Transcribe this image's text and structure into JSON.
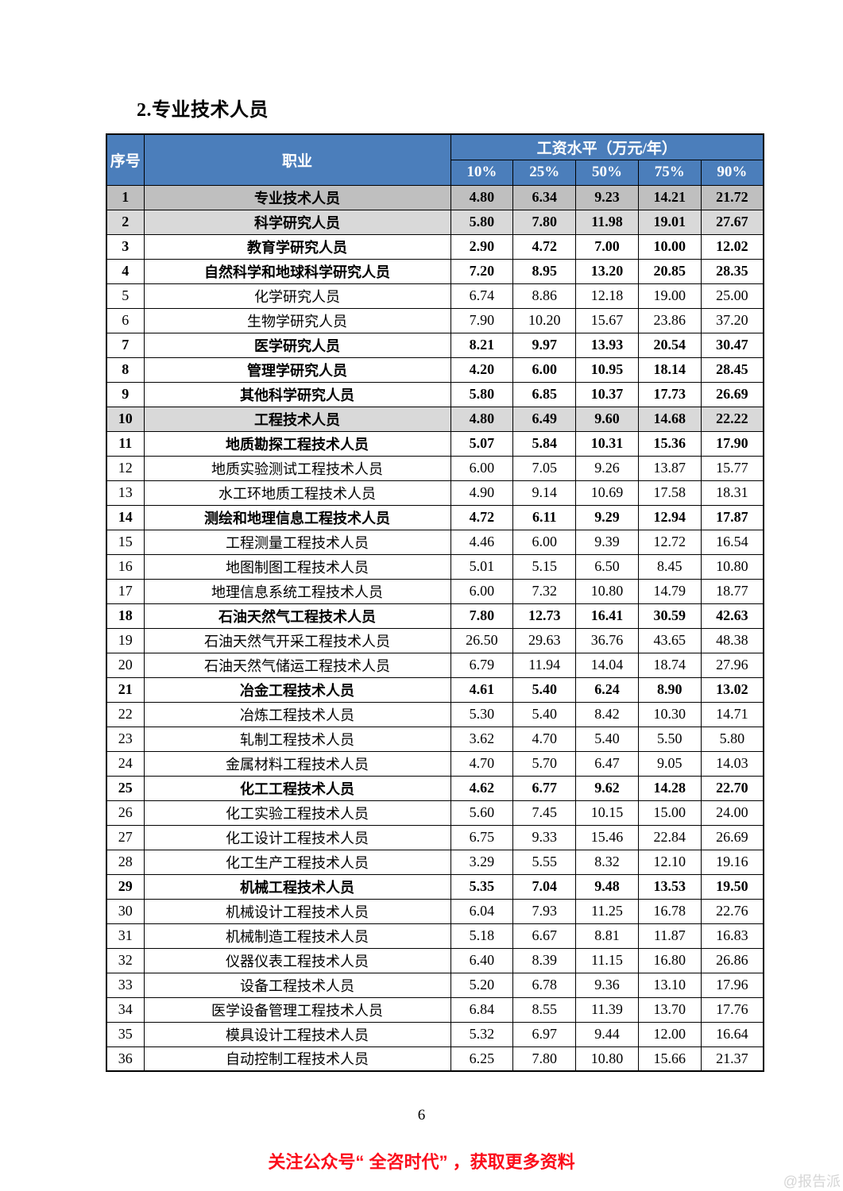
{
  "page": {
    "title": "2.专业技术人员",
    "page_number": "6",
    "footer_notice": "关注公众号“ 全咨时代” ，获取更多资料",
    "watermark": "@报告派"
  },
  "colors": {
    "header_blue": "#4b7ebb",
    "row_dark_gray": "#bfbfbf",
    "row_light_gray": "#d9d9d9",
    "footer_red": "#fb0d1b",
    "watermark_gray": "#d6d6d6",
    "border": "#000000"
  },
  "table": {
    "header": {
      "col_index": "序号",
      "col_occupation": "职业",
      "col_salary_group": "工资水平（万元/年）",
      "percentiles": [
        "10%",
        "25%",
        "50%",
        "75%",
        "90%"
      ]
    },
    "rows": [
      {
        "no": "1",
        "occupation": "专业技术人员",
        "values": [
          "4.80",
          "6.34",
          "9.23",
          "14.21",
          "21.72"
        ],
        "bold": true,
        "bg": "dark"
      },
      {
        "no": "2",
        "occupation": "科学研究人员",
        "values": [
          "5.80",
          "7.80",
          "11.98",
          "19.01",
          "27.67"
        ],
        "bold": true,
        "bg": "light"
      },
      {
        "no": "3",
        "occupation": "教育学研究人员",
        "values": [
          "2.90",
          "4.72",
          "7.00",
          "10.00",
          "12.02"
        ],
        "bold": true,
        "bg": "none"
      },
      {
        "no": "4",
        "occupation": "自然科学和地球科学研究人员",
        "values": [
          "7.20",
          "8.95",
          "13.20",
          "20.85",
          "28.35"
        ],
        "bold": true,
        "bg": "none"
      },
      {
        "no": "5",
        "occupation": "化学研究人员",
        "values": [
          "6.74",
          "8.86",
          "12.18",
          "19.00",
          "25.00"
        ],
        "bold": false,
        "bg": "none"
      },
      {
        "no": "6",
        "occupation": "生物学研究人员",
        "values": [
          "7.90",
          "10.20",
          "15.67",
          "23.86",
          "37.20"
        ],
        "bold": false,
        "bg": "none"
      },
      {
        "no": "7",
        "occupation": "医学研究人员",
        "values": [
          "8.21",
          "9.97",
          "13.93",
          "20.54",
          "30.47"
        ],
        "bold": true,
        "bg": "none"
      },
      {
        "no": "8",
        "occupation": "管理学研究人员",
        "values": [
          "4.20",
          "6.00",
          "10.95",
          "18.14",
          "28.45"
        ],
        "bold": true,
        "bg": "none"
      },
      {
        "no": "9",
        "occupation": "其他科学研究人员",
        "values": [
          "5.80",
          "6.85",
          "10.37",
          "17.73",
          "26.69"
        ],
        "bold": true,
        "bg": "none"
      },
      {
        "no": "10",
        "occupation": "工程技术人员",
        "values": [
          "4.80",
          "6.49",
          "9.60",
          "14.68",
          "22.22"
        ],
        "bold": true,
        "bg": "light"
      },
      {
        "no": "11",
        "occupation": "地质勘探工程技术人员",
        "values": [
          "5.07",
          "5.84",
          "10.31",
          "15.36",
          "17.90"
        ],
        "bold": true,
        "bg": "none"
      },
      {
        "no": "12",
        "occupation": "地质实验测试工程技术人员",
        "values": [
          "6.00",
          "7.05",
          "9.26",
          "13.87",
          "15.77"
        ],
        "bold": false,
        "bg": "none"
      },
      {
        "no": "13",
        "occupation": "水工环地质工程技术人员",
        "values": [
          "4.90",
          "9.14",
          "10.69",
          "17.58",
          "18.31"
        ],
        "bold": false,
        "bg": "none"
      },
      {
        "no": "14",
        "occupation": "测绘和地理信息工程技术人员",
        "values": [
          "4.72",
          "6.11",
          "9.29",
          "12.94",
          "17.87"
        ],
        "bold": true,
        "bg": "none"
      },
      {
        "no": "15",
        "occupation": "工程测量工程技术人员",
        "values": [
          "4.46",
          "6.00",
          "9.39",
          "12.72",
          "16.54"
        ],
        "bold": false,
        "bg": "none"
      },
      {
        "no": "16",
        "occupation": "地图制图工程技术人员",
        "values": [
          "5.01",
          "5.15",
          "6.50",
          "8.45",
          "10.80"
        ],
        "bold": false,
        "bg": "none"
      },
      {
        "no": "17",
        "occupation": "地理信息系统工程技术人员",
        "values": [
          "6.00",
          "7.32",
          "10.80",
          "14.79",
          "18.77"
        ],
        "bold": false,
        "bg": "none"
      },
      {
        "no": "18",
        "occupation": "石油天然气工程技术人员",
        "values": [
          "7.80",
          "12.73",
          "16.41",
          "30.59",
          "42.63"
        ],
        "bold": true,
        "bg": "none"
      },
      {
        "no": "19",
        "occupation": "石油天然气开采工程技术人员",
        "values": [
          "26.50",
          "29.63",
          "36.76",
          "43.65",
          "48.38"
        ],
        "bold": false,
        "bg": "none"
      },
      {
        "no": "20",
        "occupation": "石油天然气储运工程技术人员",
        "values": [
          "6.79",
          "11.94",
          "14.04",
          "18.74",
          "27.96"
        ],
        "bold": false,
        "bg": "none"
      },
      {
        "no": "21",
        "occupation": "冶金工程技术人员",
        "values": [
          "4.61",
          "5.40",
          "6.24",
          "8.90",
          "13.02"
        ],
        "bold": true,
        "bg": "none"
      },
      {
        "no": "22",
        "occupation": "冶炼工程技术人员",
        "values": [
          "5.30",
          "5.40",
          "8.42",
          "10.30",
          "14.71"
        ],
        "bold": false,
        "bg": "none"
      },
      {
        "no": "23",
        "occupation": "轧制工程技术人员",
        "values": [
          "3.62",
          "4.70",
          "5.40",
          "5.50",
          "5.80"
        ],
        "bold": false,
        "bg": "none"
      },
      {
        "no": "24",
        "occupation": "金属材料工程技术人员",
        "values": [
          "4.70",
          "5.70",
          "6.47",
          "9.05",
          "14.03"
        ],
        "bold": false,
        "bg": "none"
      },
      {
        "no": "25",
        "occupation": "化工工程技术人员",
        "values": [
          "4.62",
          "6.77",
          "9.62",
          "14.28",
          "22.70"
        ],
        "bold": true,
        "bg": "none"
      },
      {
        "no": "26",
        "occupation": "化工实验工程技术人员",
        "values": [
          "5.60",
          "7.45",
          "10.15",
          "15.00",
          "24.00"
        ],
        "bold": false,
        "bg": "none"
      },
      {
        "no": "27",
        "occupation": "化工设计工程技术人员",
        "values": [
          "6.75",
          "9.33",
          "15.46",
          "22.84",
          "26.69"
        ],
        "bold": false,
        "bg": "none"
      },
      {
        "no": "28",
        "occupation": "化工生产工程技术人员",
        "values": [
          "3.29",
          "5.55",
          "8.32",
          "12.10",
          "19.16"
        ],
        "bold": false,
        "bg": "none"
      },
      {
        "no": "29",
        "occupation": "机械工程技术人员",
        "values": [
          "5.35",
          "7.04",
          "9.48",
          "13.53",
          "19.50"
        ],
        "bold": true,
        "bg": "none"
      },
      {
        "no": "30",
        "occupation": "机械设计工程技术人员",
        "values": [
          "6.04",
          "7.93",
          "11.25",
          "16.78",
          "22.76"
        ],
        "bold": false,
        "bg": "none"
      },
      {
        "no": "31",
        "occupation": "机械制造工程技术人员",
        "values": [
          "5.18",
          "6.67",
          "8.81",
          "11.87",
          "16.83"
        ],
        "bold": false,
        "bg": "none"
      },
      {
        "no": "32",
        "occupation": "仪器仪表工程技术人员",
        "values": [
          "6.40",
          "8.39",
          "11.15",
          "16.80",
          "26.86"
        ],
        "bold": false,
        "bg": "none"
      },
      {
        "no": "33",
        "occupation": "设备工程技术人员",
        "values": [
          "5.20",
          "6.78",
          "9.36",
          "13.10",
          "17.96"
        ],
        "bold": false,
        "bg": "none"
      },
      {
        "no": "34",
        "occupation": "医学设备管理工程技术人员",
        "values": [
          "6.84",
          "8.55",
          "11.39",
          "13.70",
          "17.76"
        ],
        "bold": false,
        "bg": "none"
      },
      {
        "no": "35",
        "occupation": "模具设计工程技术人员",
        "values": [
          "5.32",
          "6.97",
          "9.44",
          "12.00",
          "16.64"
        ],
        "bold": false,
        "bg": "none"
      },
      {
        "no": "36",
        "occupation": "自动控制工程技术人员",
        "values": [
          "6.25",
          "7.80",
          "10.80",
          "15.66",
          "21.37"
        ],
        "bold": false,
        "bg": "none"
      }
    ]
  }
}
